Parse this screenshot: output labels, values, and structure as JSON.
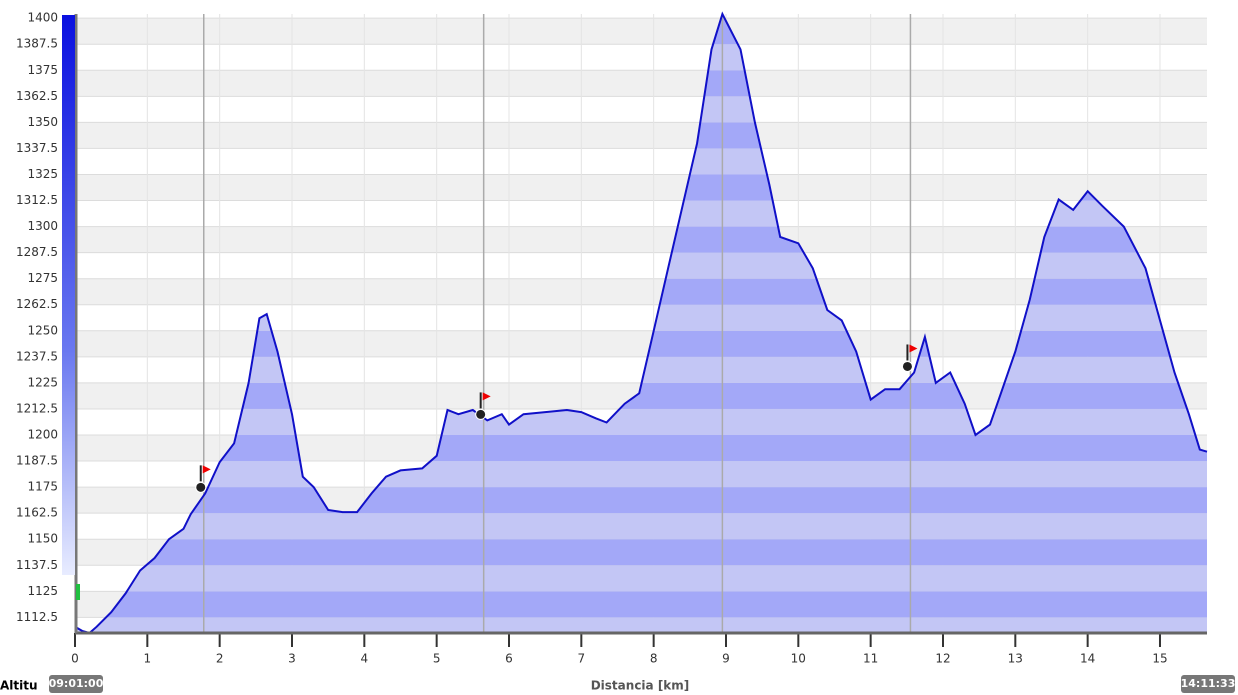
{
  "chart_data": {
    "type": "area",
    "y_label": "Altitu",
    "x_label": "Distancia [km]",
    "start_time": "09:01:00",
    "end_time": "14:11:33",
    "color": "#1010c8",
    "xlim": [
      0,
      15.65
    ],
    "ylim": [
      1105,
      1402
    ],
    "xticks": [
      0,
      1,
      2,
      3,
      4,
      5,
      6,
      7,
      8,
      9,
      10,
      11,
      12,
      13,
      14,
      15
    ],
    "yticks": [
      1112.5,
      1125,
      1137.5,
      1150,
      1162.5,
      1175,
      1187.5,
      1200,
      1212.5,
      1225,
      1237.5,
      1250,
      1262.5,
      1275,
      1287.5,
      1300,
      1312.5,
      1325,
      1337.5,
      1350,
      1362.5,
      1375,
      1387.5,
      1400
    ],
    "x": [
      0,
      0.1,
      0.2,
      0.3,
      0.5,
      0.7,
      0.9,
      1.1,
      1.3,
      1.5,
      1.6,
      1.8,
      2.0,
      2.2,
      2.4,
      2.55,
      2.65,
      2.8,
      3.0,
      3.15,
      3.3,
      3.5,
      3.7,
      3.9,
      4.1,
      4.3,
      4.5,
      4.8,
      5.0,
      5.15,
      5.3,
      5.5,
      5.7,
      5.9,
      6.0,
      6.2,
      6.5,
      6.8,
      7.0,
      7.2,
      7.35,
      7.6,
      7.8,
      8.0,
      8.2,
      8.4,
      8.6,
      8.8,
      8.95,
      9.2,
      9.4,
      9.6,
      9.75,
      10.0,
      10.2,
      10.4,
      10.6,
      10.8,
      11.0,
      11.2,
      11.4,
      11.6,
      11.75,
      11.9,
      12.1,
      12.3,
      12.45,
      12.65,
      12.8,
      13.0,
      13.2,
      13.4,
      13.6,
      13.8,
      14.0,
      14.2,
      14.5,
      14.8,
      15.0,
      15.2,
      15.4,
      15.55,
      15.65
    ],
    "values": [
      1108,
      1106,
      1105,
      1108,
      1115,
      1124,
      1135,
      1141,
      1150,
      1155,
      1162,
      1172,
      1187,
      1196,
      1225,
      1256,
      1258,
      1240,
      1210,
      1180,
      1175,
      1164,
      1163,
      1163,
      1172,
      1180,
      1183,
      1184,
      1190,
      1212,
      1210,
      1212,
      1207,
      1210,
      1205,
      1210,
      1211,
      1212,
      1211,
      1208,
      1206,
      1215,
      1220,
      1250,
      1280,
      1310,
      1340,
      1385,
      1402,
      1385,
      1350,
      1320,
      1295,
      1292,
      1280,
      1260,
      1255,
      1240,
      1217,
      1222,
      1222,
      1230,
      1247,
      1225,
      1230,
      1215,
      1200,
      1205,
      1220,
      1240,
      1265,
      1295,
      1313,
      1308,
      1317,
      1310,
      1300,
      1280,
      1255,
      1230,
      1210,
      1193,
      1192
    ],
    "waypoints": [
      1.78,
      5.65,
      8.95,
      11.55
    ],
    "grid": true
  }
}
